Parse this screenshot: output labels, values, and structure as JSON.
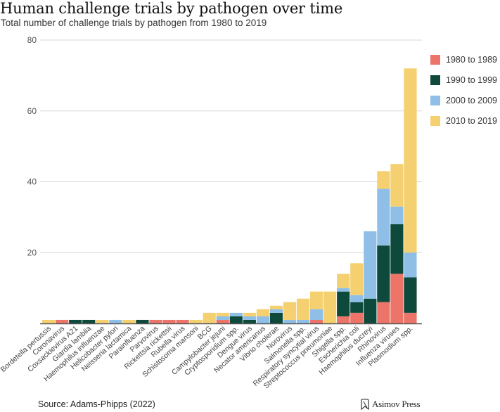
{
  "title": "Human challenge trials by pathogen over time",
  "subtitle": "Total number of challenge trials by pathogen from 1980 to 2019",
  "source": "Source: Adams-Phipps (2022)",
  "brand": {
    "name": "Asimov Press",
    "icon": "bookmark-logo-icon"
  },
  "chart_data": {
    "type": "bar",
    "stacked": true,
    "title": "Human challenge trials by pathogen over time",
    "subtitle": "Total number of challenge trials by pathogen from 1980 to 2019",
    "xlabel": "",
    "ylabel": "",
    "ylim": [
      0,
      80
    ],
    "yticks": [
      20,
      40,
      60,
      80
    ],
    "grid": true,
    "legend_position": "right",
    "categories": [
      "Bordetella pertussis",
      "Coronavirus",
      "Coxsackievirus A21",
      "Giardia lamblia",
      "Haemophilus influenzae",
      "Helicobacter pylori",
      "Neisseria lactamica",
      "Parainfluenza",
      "Parvovirus",
      "Rickettsia rickettsii",
      "Rubella virus",
      "Schistosoma mansoni",
      "BCG",
      "Campylobacter jejuni",
      "Cryptosporidium spp.",
      "Dengue virus",
      "Necator americanus",
      "Vibrio cholerae",
      "Norovirus",
      "Salmonella spp.",
      "Respiratory syncytial virus",
      "Streptococcus pneumoniae",
      "Shigella spp.",
      "Escherichia coli",
      "Haemophilus ducreyi",
      "Rhinovirus",
      "Influenza viruses",
      "Plasmodium spp."
    ],
    "series": [
      {
        "name": "1980 to 1989",
        "color": "#ec7468",
        "values": [
          0,
          1,
          0,
          0,
          0,
          0,
          0,
          0,
          1,
          1,
          1,
          0,
          0,
          1,
          0,
          0,
          0,
          0,
          0,
          0,
          1,
          0,
          2,
          3,
          0,
          6,
          14,
          3
        ]
      },
      {
        "name": "1990 to 1999",
        "color": "#0e4a3c",
        "values": [
          0,
          0,
          1,
          1,
          0,
          0,
          0,
          1,
          0,
          0,
          0,
          0,
          0,
          0,
          2,
          1,
          0,
          3,
          0,
          0,
          0,
          0,
          7,
          3,
          7,
          16,
          14,
          10
        ]
      },
      {
        "name": "2000 to 2009",
        "color": "#8fbfe6",
        "values": [
          0,
          0,
          0,
          0,
          0,
          1,
          0,
          0,
          0,
          0,
          0,
          0,
          0,
          1,
          1,
          1,
          2,
          1,
          1,
          1,
          3,
          0,
          1,
          2,
          19,
          16,
          5,
          7
        ]
      },
      {
        "name": "2010 to 2019",
        "color": "#f5d070",
        "values": [
          1,
          0,
          0,
          0,
          1,
          0,
          1,
          0,
          0,
          0,
          0,
          1,
          3,
          1,
          0,
          1,
          2,
          1,
          5,
          6,
          5,
          9,
          4,
          9,
          0,
          5,
          12,
          52
        ]
      }
    ]
  }
}
